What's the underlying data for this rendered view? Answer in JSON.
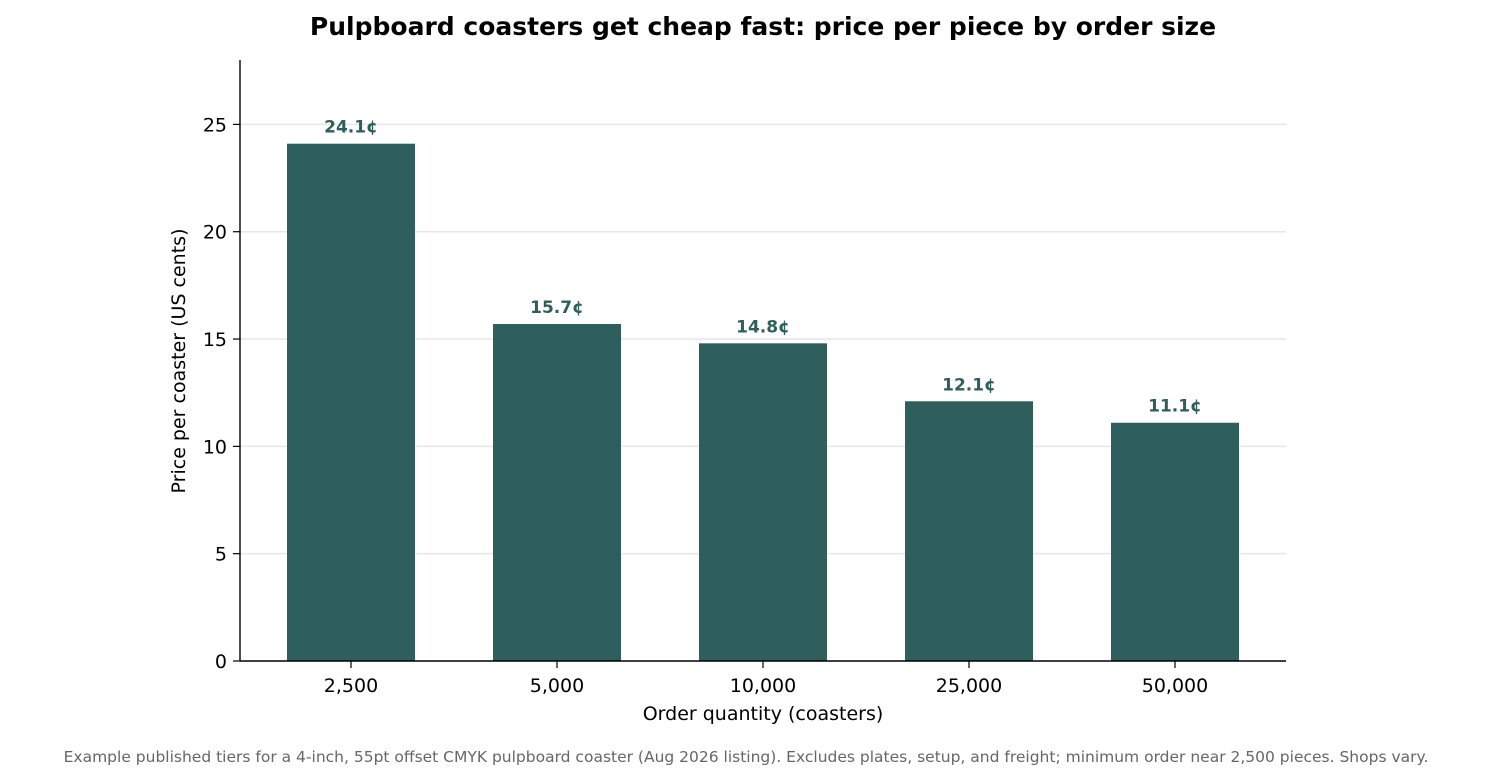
{
  "chart_data": {
    "type": "bar",
    "title": "Pulpboard coasters get cheap fast: price per piece by order size",
    "xlabel": "Order quantity (coasters)",
    "ylabel": "Price per coaster (US cents)",
    "categories": [
      "2,500",
      "5,000",
      "10,000",
      "25,000",
      "50,000"
    ],
    "values": [
      24.1,
      15.7,
      14.8,
      12.1,
      11.1
    ],
    "value_labels": [
      "24.1¢",
      "15.7¢",
      "14.8¢",
      "12.1¢",
      "11.1¢"
    ],
    "ylim": [
      0,
      28
    ],
    "yticks": [
      0,
      5,
      10,
      15,
      20,
      25
    ],
    "grid": "horizontal",
    "legend": "none",
    "colors": {
      "bar": "#2e5f5c",
      "label": "#2e5f5c",
      "grid": "#e6e6e6",
      "axis": "#000000",
      "footnote": "#666666"
    }
  },
  "footnote": "Example published tiers for a 4-inch, 55pt offset CMYK pulpboard coaster (Aug 2026 listing). Excludes plates, setup, and freight; minimum order near 2,500 pieces. Shops vary."
}
